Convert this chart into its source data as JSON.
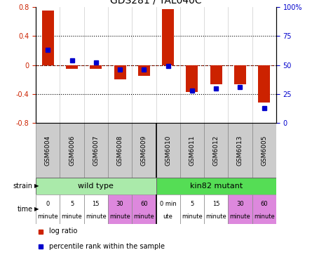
{
  "title": "GDS281 / YAL040C",
  "samples": [
    "GSM6004",
    "GSM6006",
    "GSM6007",
    "GSM6008",
    "GSM6009",
    "GSM6010",
    "GSM6011",
    "GSM6012",
    "GSM6013",
    "GSM6005"
  ],
  "log_ratio": [
    0.75,
    -0.05,
    -0.05,
    -0.2,
    -0.15,
    0.77,
    -0.37,
    -0.27,
    -0.27,
    -0.52
  ],
  "percentile": [
    63,
    54,
    52,
    46,
    46,
    49,
    28,
    30,
    31,
    13
  ],
  "ylim_left": [
    -0.8,
    0.8
  ],
  "ylim_right": [
    0,
    100
  ],
  "yticks_left": [
    -0.8,
    -0.4,
    0,
    0.4,
    0.8
  ],
  "ytick_labels_left": [
    "-0.8",
    "-0.4",
    "0",
    "0.4",
    "0.8"
  ],
  "yticks_right": [
    0,
    25,
    50,
    75,
    100
  ],
  "ytick_labels_right": [
    "0",
    "25",
    "50",
    "75",
    "100%"
  ],
  "hlines_dotted": [
    0.4,
    -0.4
  ],
  "hline_zero_dotted": 0.0,
  "log_ratio_color": "#cc2200",
  "percentile_color": "#0000cc",
  "bg_color": "#ffffff",
  "bar_width": 0.5,
  "pct_marker_size": 4,
  "wt_color": "#aaeaaa",
  "mut_color": "#55dd55",
  "time_white": "#ffffff",
  "time_pink": "#dd88dd",
  "sample_box_color": "#cccccc",
  "strain_labels": [
    "wild type",
    "kin82 mutant"
  ],
  "time_labels": [
    [
      "0",
      "minute"
    ],
    [
      "5",
      "minute"
    ],
    [
      "15",
      "minute"
    ],
    [
      "30",
      "minute"
    ],
    [
      "60",
      "minute"
    ],
    [
      "0 min",
      "ute"
    ],
    [
      "5",
      "minute"
    ],
    [
      "15",
      "minute"
    ],
    [
      "30",
      "minute"
    ],
    [
      "60",
      "minute"
    ]
  ],
  "time_colors": [
    "#ffffff",
    "#ffffff",
    "#ffffff",
    "#dd88dd",
    "#dd88dd",
    "#ffffff",
    "#ffffff",
    "#ffffff",
    "#dd88dd",
    "#dd88dd"
  ]
}
